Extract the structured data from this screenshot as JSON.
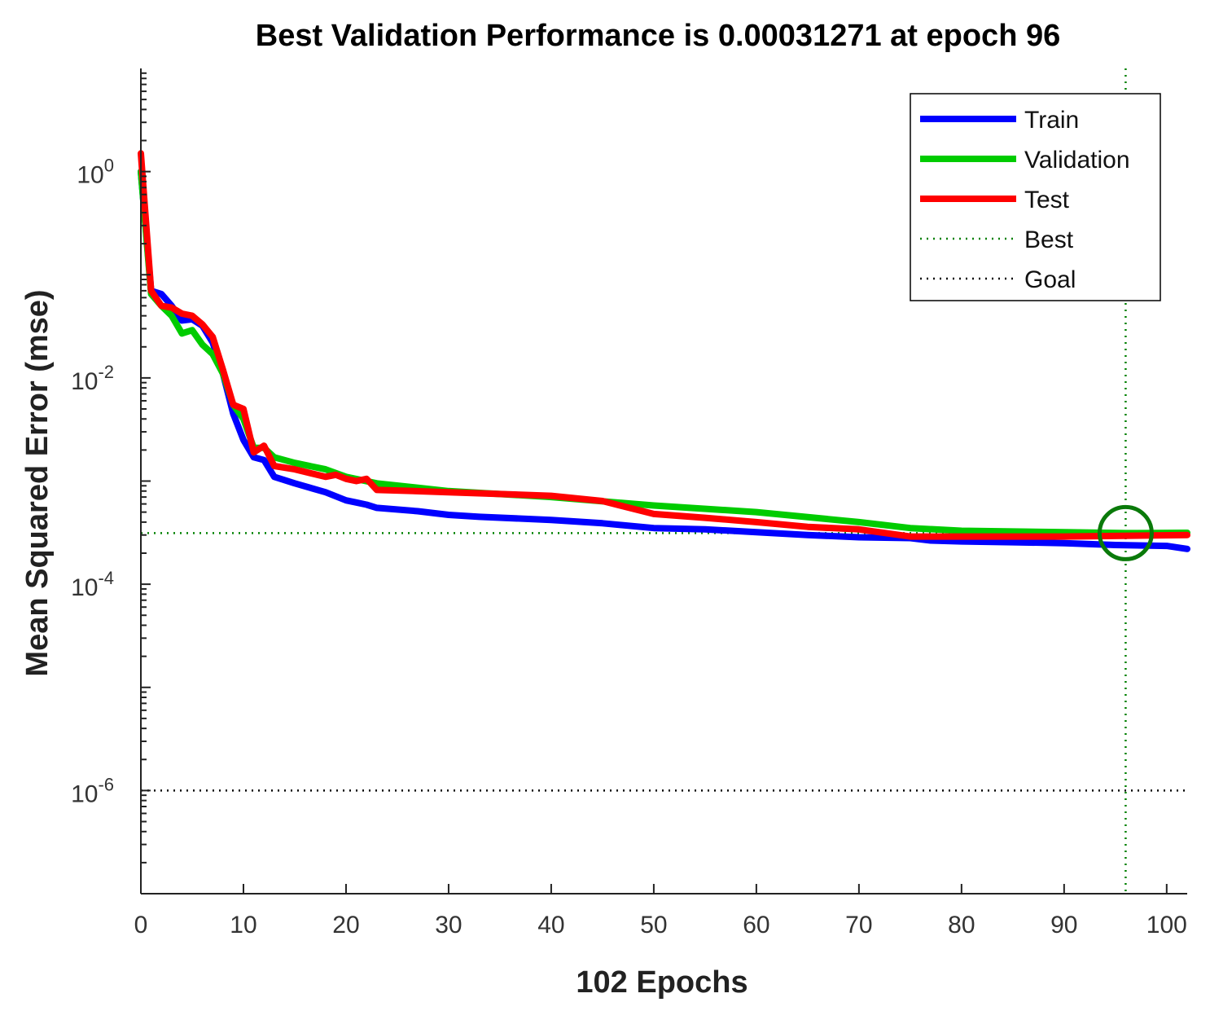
{
  "chart_data": {
    "type": "line",
    "title": "Best Validation Performance is 0.00031271 at epoch 96",
    "xlabel": "102 Epochs",
    "ylabel": "Mean Squared Error  (mse)",
    "xlim": [
      0,
      102
    ],
    "ylim": [
      1e-07,
      10
    ],
    "yscale": "log",
    "xticks": [
      "0",
      "10",
      "20",
      "30",
      "40",
      "50",
      "60",
      "70",
      "80",
      "90",
      "100"
    ],
    "yticks": [
      {
        "base": "10",
        "exp": "0"
      },
      {
        "base": "10",
        "exp": "-2"
      },
      {
        "base": "10",
        "exp": "-4"
      },
      {
        "base": "10",
        "exp": "-6"
      }
    ],
    "series": [
      {
        "name": "Train",
        "color": "#0000ff",
        "x": [
          0,
          1,
          2,
          3,
          4,
          5,
          6,
          7,
          8,
          9,
          10,
          11,
          12,
          13,
          15,
          18,
          20,
          21,
          22,
          23,
          27,
          30,
          33,
          40,
          45,
          50,
          55,
          60,
          65,
          70,
          75,
          77,
          80,
          85,
          90,
          95,
          100,
          102
        ],
        "y": [
          1.0,
          0.07,
          0.065,
          0.05,
          0.036,
          0.037,
          0.032,
          0.022,
          0.011,
          0.0045,
          0.0025,
          0.0017,
          0.0016,
          0.0011,
          0.00095,
          0.00078,
          0.00065,
          0.00062,
          0.00059,
          0.00055,
          0.00051,
          0.00047,
          0.00045,
          0.00042,
          0.00039,
          0.00035,
          0.00034,
          0.00032,
          0.0003,
          0.000285,
          0.00028,
          0.000265,
          0.00026,
          0.000255,
          0.00025,
          0.00024,
          0.000235,
          0.00022
        ]
      },
      {
        "name": "Validation",
        "color": "#00cc00",
        "x": [
          0,
          1,
          2,
          3,
          4,
          5,
          6,
          7,
          8,
          9,
          10,
          11,
          12,
          13,
          15,
          18,
          20,
          23,
          30,
          40,
          50,
          60,
          70,
          75,
          80,
          90,
          96,
          102
        ],
        "y": [
          1.0,
          0.065,
          0.05,
          0.04,
          0.027,
          0.029,
          0.021,
          0.017,
          0.011,
          0.0055,
          0.004,
          0.0021,
          0.0021,
          0.0017,
          0.0015,
          0.0013,
          0.0011,
          0.00095,
          0.0008,
          0.0007,
          0.00058,
          0.0005,
          0.0004,
          0.00035,
          0.00033,
          0.00032,
          0.00031271,
          0.000315
        ]
      },
      {
        "name": "Test",
        "color": "#ff0000",
        "x": [
          0,
          1,
          2,
          3,
          4,
          5,
          6,
          7,
          8,
          9,
          10,
          11,
          12,
          13,
          15,
          18,
          19,
          20,
          21,
          22,
          23,
          25,
          30,
          40,
          45,
          50,
          55,
          60,
          65,
          70,
          75,
          80,
          90,
          102
        ],
        "y": [
          1.5,
          0.07,
          0.05,
          0.048,
          0.042,
          0.04,
          0.033,
          0.025,
          0.012,
          0.0055,
          0.005,
          0.0019,
          0.0022,
          0.0014,
          0.0013,
          0.0011,
          0.00115,
          0.00105,
          0.001,
          0.00105,
          0.00082,
          0.00081,
          0.00078,
          0.00072,
          0.00064,
          0.00048,
          0.00044,
          0.0004,
          0.00036,
          0.00034,
          0.00029,
          0.00029,
          0.00029,
          0.0003
        ]
      }
    ],
    "best": {
      "label": "Best",
      "color": "#008000",
      "epoch": 96,
      "value": 0.00031271
    },
    "goal": {
      "label": "Goal",
      "color": "#000000",
      "value": 1e-06
    },
    "legend": {
      "position": "top-right",
      "entries": [
        "Train",
        "Validation",
        "Test",
        "Best",
        "Goal"
      ]
    }
  }
}
